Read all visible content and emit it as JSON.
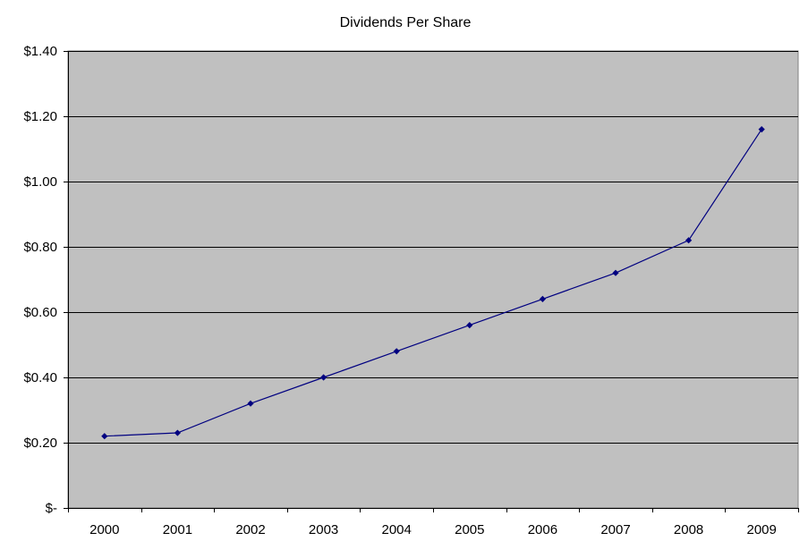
{
  "chart_data": {
    "type": "line",
    "title": "Dividends Per Share",
    "xlabel": "",
    "ylabel": "",
    "categories": [
      "2000",
      "2001",
      "2002",
      "2003",
      "2004",
      "2005",
      "2006",
      "2007",
      "2008",
      "2009"
    ],
    "series": [
      {
        "values": [
          0.22,
          0.23,
          0.32,
          0.4,
          0.48,
          0.56,
          0.64,
          0.72,
          0.82,
          1.16
        ]
      }
    ],
    "ylim": [
      0,
      1.4
    ],
    "y_ticks": [
      0,
      0.2,
      0.4,
      0.6,
      0.8,
      1.0,
      1.2,
      1.4
    ],
    "y_tick_labels": [
      "$-",
      "$0.20",
      "$0.40",
      "$0.60",
      "$0.80",
      "$1.00",
      "$1.20",
      "$1.40"
    ],
    "grid": "horizontal",
    "legend": "none",
    "colors": {
      "plot_background": "#c0c0c0",
      "line": "#000080",
      "marker": "#000080",
      "gridline": "#000000"
    }
  }
}
